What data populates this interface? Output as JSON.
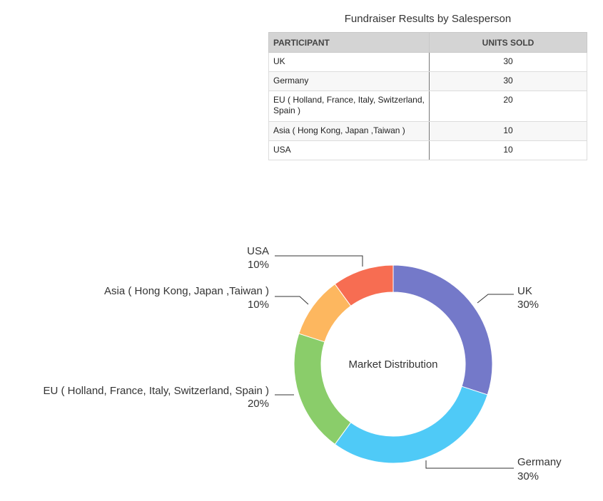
{
  "table": {
    "title": "Fundraiser Results by Salesperson",
    "headers": [
      "PARTICIPANT",
      "UNITS SOLD"
    ],
    "rows": [
      {
        "participant": "UK",
        "units": "30"
      },
      {
        "participant": "Germany",
        "units": "30"
      },
      {
        "participant": "EU ( Holland, France, Italy, Switzerland, Spain )",
        "units": "20"
      },
      {
        "participant": "Asia ( Hong Kong, Japan ,Taiwan )",
        "units": "10"
      },
      {
        "participant": "USA",
        "units": "10"
      }
    ]
  },
  "chart_data": {
    "type": "pie",
    "subtype": "donut",
    "center_label": "Market Distribution",
    "categories": [
      "UK",
      "Germany",
      "EU ( Holland, France, Italy, Switzerland, Spain )",
      "Asia ( Hong Kong, Japan ,Taiwan )",
      "USA"
    ],
    "values": [
      30,
      30,
      20,
      10,
      10
    ],
    "percent_labels": [
      "30%",
      "30%",
      "20%",
      "10%",
      "10%"
    ],
    "colors": [
      "#7479c9",
      "#4fcaf7",
      "#8acd6a",
      "#fdb75f",
      "#f76d52"
    ],
    "start_angle_deg": 0,
    "direction": "clockwise"
  }
}
